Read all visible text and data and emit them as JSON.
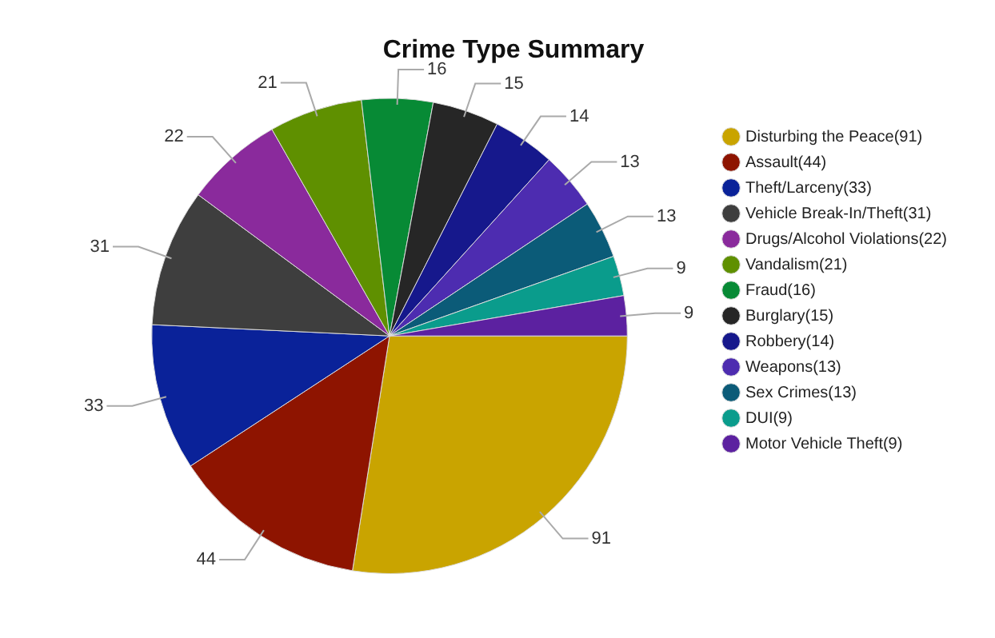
{
  "chart_data": {
    "type": "pie",
    "title": "Crime Type Summary",
    "categories": [
      "Disturbing the Peace(91)",
      "Assault(44)",
      "Theft/Larceny(33)",
      "Vehicle Break-In/Theft(31)",
      "Drugs/Alcohol Violations(22)",
      "Vandalism(21)",
      "Fraud(16)",
      "Burglary(15)",
      "Robbery(14)",
      "Weapons(13)",
      "Sex Crimes(13)",
      "DUI(9)",
      "Motor Vehicle Theft(9)"
    ],
    "values": [
      91,
      44,
      33,
      31,
      22,
      21,
      16,
      15,
      14,
      13,
      13,
      9,
      9
    ],
    "colors": [
      "#c9a400",
      "#8e1400",
      "#0a2299",
      "#3e3e3e",
      "#8a2a9c",
      "#5f9000",
      "#078a35",
      "#262626",
      "#16188c",
      "#4d2cb0",
      "#0b5b78",
      "#0a9c8c",
      "#5c21a0"
    ],
    "data_labels": true,
    "legend": "right"
  }
}
